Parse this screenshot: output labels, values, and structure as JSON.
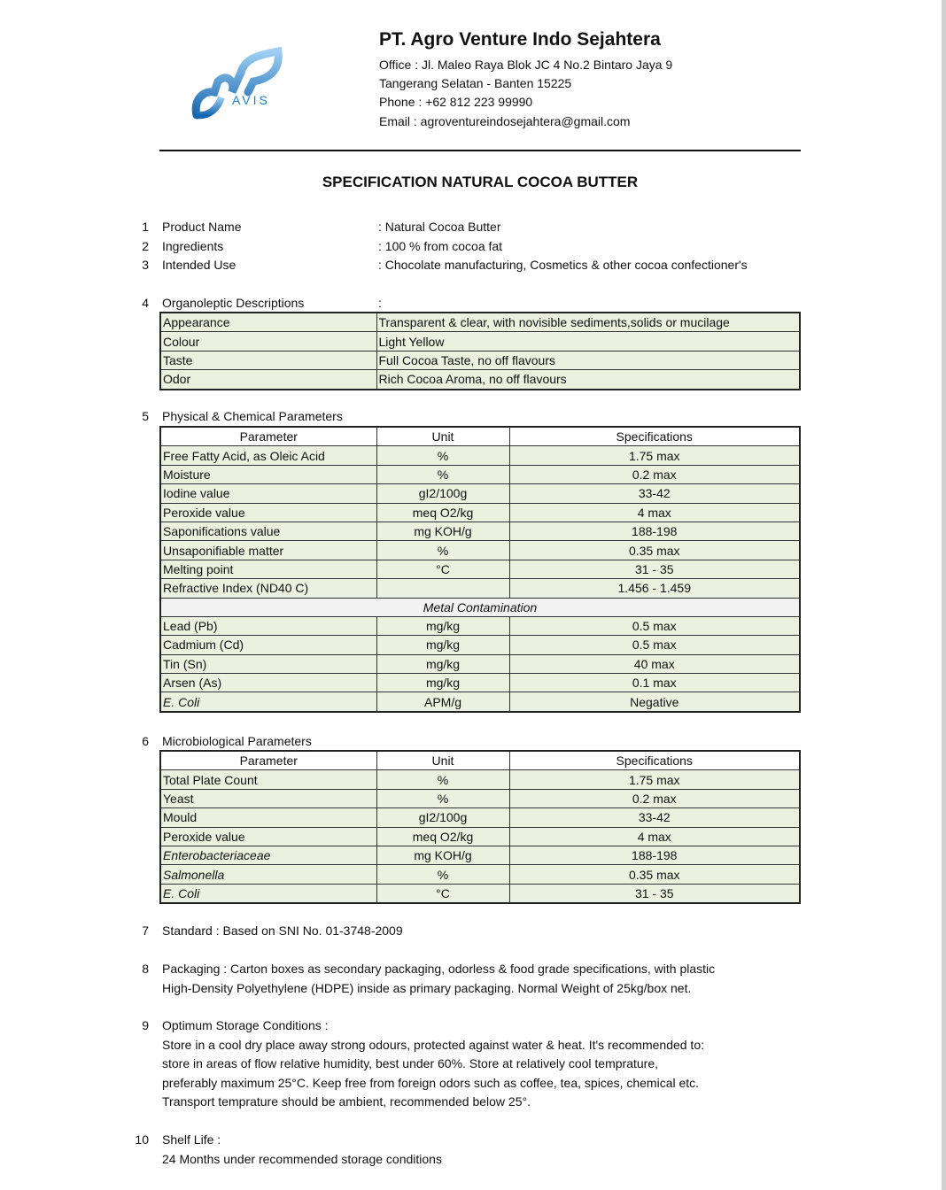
{
  "header": {
    "logo_text": "AVIS",
    "company": "PT. Agro Venture Indo Sejahtera",
    "address_lines": [
      "Office : Jl. Maleo Raya Blok JC 4 No.2 Bintaro Jaya 9",
      "Tangerang Selatan - Banten 15225",
      "Phone : +62 812 223 99990",
      "Email : agroventureindosejahtera@gmail.com"
    ],
    "colors": {
      "logo": "#1e7fc8"
    }
  },
  "title": "SPECIFICATION NATURAL COCOA BUTTER",
  "basic": [
    {
      "num": "1",
      "label": "Product Name",
      "value": ": Natural Cocoa Butter"
    },
    {
      "num": "2",
      "label": "Ingredients",
      "value": ": 100 % from cocoa fat"
    },
    {
      "num": "3",
      "label": "Intended Use",
      "value": ": Chocolate manufacturing, Cosmetics & other cocoa confectioner's"
    }
  ],
  "organoleptic": {
    "num": "4",
    "label": "Organoleptic Descriptions",
    "colon": ":",
    "rows": [
      [
        "Appearance",
        "Transparent & clear, with novisible sediments,solids or mucilage"
      ],
      [
        "Colour",
        "Light Yellow"
      ],
      [
        "Taste",
        "Full Cocoa Taste, no off flavours"
      ],
      [
        "Odor",
        "Rich Cocoa Aroma, no off flavours"
      ]
    ]
  },
  "physical": {
    "num": "5",
    "label": "Physical & Chemical Parameters",
    "headers": [
      "Parameter",
      "Unit",
      "Specifications"
    ],
    "rows": [
      [
        "Free Fatty Acid, as Oleic Acid",
        "%",
        "1.75 max"
      ],
      [
        "Moisture",
        "%",
        "0.2 max"
      ],
      [
        "Iodine value",
        "gI2/100g",
        "33-42"
      ],
      [
        "Peroxide value",
        "meq O2/kg",
        "4 max"
      ],
      [
        "Saponifications value",
        "mg KOH/g",
        "188-198"
      ],
      [
        "Unsaponifiable matter",
        "%",
        "0.35 max"
      ],
      [
        "Melting point",
        "°C",
        "31 - 35"
      ],
      [
        "Refractive Index (ND40 C)",
        "",
        "1.456 - 1.459"
      ]
    ],
    "metal_header": "Metal Contamination",
    "metal_rows": [
      [
        "Lead (Pb)",
        "mg/kg",
        "0.5 max"
      ],
      [
        "Cadmium (Cd)",
        "mg/kg",
        "0.5 max"
      ],
      [
        "Tin (Sn)",
        "mg/kg",
        "40 max"
      ],
      [
        "Arsen (As)",
        "mg/kg",
        "0.1 max"
      ],
      [
        "E. Coli",
        "APM/g",
        "Negative"
      ]
    ]
  },
  "micro": {
    "num": "6",
    "label": "Microbiological Parameters",
    "headers": [
      "Parameter",
      "Unit",
      "Specifications"
    ],
    "rows": [
      [
        "Total Plate Count",
        "%",
        "1.75 max"
      ],
      [
        "Yeast",
        "%",
        "0.2 max"
      ],
      [
        "Mould",
        "gI2/100g",
        "33-42"
      ],
      [
        "Peroxide value",
        "meq O2/kg",
        "4 max"
      ],
      [
        "Enterobacteriaceae",
        "mg KOH/g",
        "188-198"
      ],
      [
        "Salmonella",
        "%",
        "0.35 max"
      ],
      [
        "E. Coli",
        "°C",
        "31 - 35"
      ]
    ]
  },
  "standard": {
    "num": "7",
    "text": "Standard : Based on SNI No. 01-3748-2009"
  },
  "packaging": {
    "num": "8",
    "lines": [
      "Packaging : Carton boxes as secondary packaging, odorless & food grade specifications, with plastic",
      "High-Density Polyethylene (HDPE) inside as primary packaging. Normal Weight of 25kg/box net."
    ]
  },
  "storage": {
    "num": "9",
    "lines": [
      "Optimum Storage Conditions :",
      "Store in a cool dry place away strong odours, protected against water & heat. It's recommended to:",
      "store in areas of flow relative humidity, best under 60%. Store at relatively cool temprature,",
      "preferably maximum 25°C. Keep free from foreign odors such as coffee, tea, spices, chemical etc.",
      "Transport temprature should be ambient, recommended below 25°."
    ]
  },
  "shelf": {
    "num": "10",
    "lines": [
      "Shelf Life :",
      "24 Months under recommended storage conditions"
    ]
  }
}
